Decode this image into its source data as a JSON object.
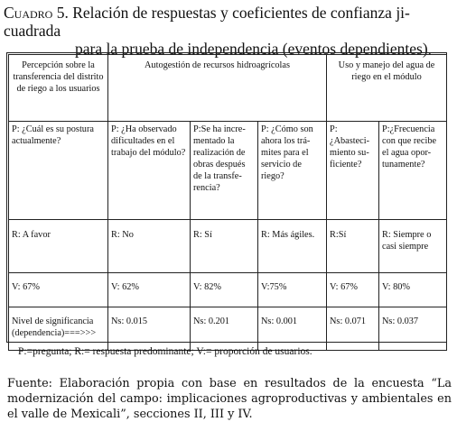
{
  "title": {
    "label": "Cuadro 5.",
    "line1": "Relación de respuestas y coeficientes de confianza ji-cuadrada",
    "line2": "para la prueba de independencia (eventos dependientes)."
  },
  "table": {
    "header": {
      "col1": "Percepción sobre la transferencia del distrito de riego a los usuarios",
      "group2": "Autogestión de recursos hidroagrícolas",
      "group3": "Uso y manejo del agua de riego en el módulo"
    },
    "questions": [
      "P: ¿Cuál es su postura actualmente?",
      "P: ¿Ha observado dificultades en el trabajo del módulo?",
      "P:Se ha incre-mentado la realización de obras después de la transfe-rencia?",
      "P: ¿Cómo son ahora los trá-mites para el servicio de riego?",
      "P:¿Abasteci-miento su-ficiente?",
      "P:¿Frecuencia con que recibe el agua opor-tunamente?"
    ],
    "responses": [
      "R: A favor",
      "R: No",
      "R: Sí",
      "R: Más ágiles.",
      "R:Sí",
      "R: Siempre o casi siempre"
    ],
    "proportions": [
      "V: 67%",
      "V: 62%",
      "V: 82%",
      "V:75%",
      "V: 67%",
      "V: 80%"
    ],
    "significance": [
      "Nivel de significancia (dependencia)===>>>",
      "Ns: 0.015",
      "Ns: 0.201",
      "Ns: 0.001",
      "Ns: 0.071",
      "Ns: 0.037"
    ]
  },
  "note": "P:=pregunta; R:= respuesta predominante; V:= proporción de usuarios.",
  "source": "Fuente: Elaboración propia con base en resultados de la encuesta “La modernización del campo: implicaciones agroproductivas y ambientales en el valle de Mexicali”, secciones II, III y IV."
}
